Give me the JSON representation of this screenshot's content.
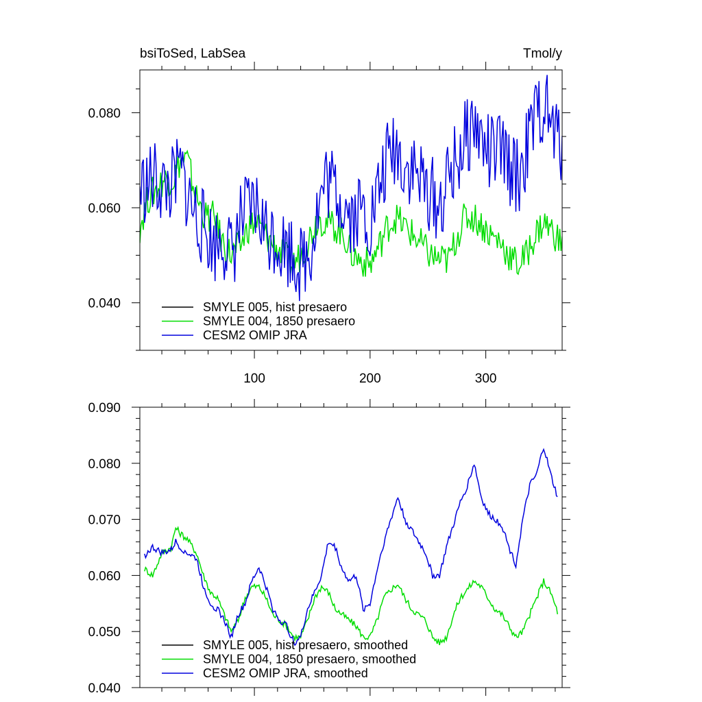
{
  "chart_data": [
    {
      "type": "line",
      "title": "bsiToSed, LabSea",
      "units": "Tmol/y",
      "xlim": [
        1,
        366
      ],
      "ylim": [
        0.03,
        0.089
      ],
      "xticks": [
        100,
        200,
        300
      ],
      "xtick_labels": [
        "100",
        "200",
        "300"
      ],
      "yticks": [
        0.04,
        0.06,
        0.08
      ],
      "ytick_labels": [
        "0.040",
        "0.060",
        "0.080"
      ],
      "legend_position": "bottom-left",
      "series": [
        {
          "name": "SMYLE 005, hist presaero",
          "color": "#000000",
          "x": [],
          "values": []
        },
        {
          "name": "SMYLE 004, 1850 presaero",
          "color": "#00dd00",
          "x": [
            1,
            8,
            15,
            22,
            30,
            36,
            42,
            50,
            58,
            65,
            72,
            80,
            88,
            95,
            102,
            110,
            118,
            125,
            132,
            140,
            148,
            155,
            162,
            170,
            178,
            185,
            192,
            200,
            208,
            215,
            222,
            230,
            238,
            245,
            252,
            260,
            268,
            275,
            282,
            290,
            298,
            305,
            312,
            320,
            328,
            335,
            342,
            350,
            358,
            366
          ],
          "values": [
            0.056,
            0.062,
            0.064,
            0.066,
            0.066,
            0.07,
            0.07,
            0.062,
            0.058,
            0.058,
            0.053,
            0.05,
            0.052,
            0.056,
            0.057,
            0.054,
            0.052,
            0.05,
            0.048,
            0.05,
            0.054,
            0.058,
            0.057,
            0.056,
            0.054,
            0.05,
            0.049,
            0.048,
            0.052,
            0.056,
            0.058,
            0.056,
            0.054,
            0.052,
            0.05,
            0.049,
            0.049,
            0.054,
            0.058,
            0.058,
            0.056,
            0.054,
            0.053,
            0.05,
            0.048,
            0.05,
            0.054,
            0.057,
            0.055,
            0.052
          ]
        },
        {
          "name": "CESM2 OMIP JRA",
          "color": "#0000dd",
          "x": [
            1,
            8,
            15,
            22,
            30,
            36,
            42,
            50,
            58,
            65,
            72,
            80,
            88,
            95,
            102,
            110,
            118,
            125,
            132,
            140,
            148,
            155,
            162,
            170,
            178,
            185,
            192,
            200,
            208,
            215,
            222,
            230,
            238,
            245,
            252,
            260,
            268,
            275,
            282,
            290,
            298,
            305,
            312,
            320,
            328,
            335,
            342,
            350,
            358,
            366
          ],
          "values": [
            0.064,
            0.065,
            0.066,
            0.064,
            0.065,
            0.068,
            0.063,
            0.058,
            0.055,
            0.052,
            0.054,
            0.05,
            0.057,
            0.059,
            0.06,
            0.055,
            0.054,
            0.052,
            0.051,
            0.048,
            0.051,
            0.06,
            0.066,
            0.064,
            0.061,
            0.058,
            0.06,
            0.057,
            0.064,
            0.07,
            0.073,
            0.069,
            0.068,
            0.065,
            0.063,
            0.06,
            0.066,
            0.07,
            0.074,
            0.078,
            0.073,
            0.071,
            0.072,
            0.069,
            0.066,
            0.072,
            0.078,
            0.082,
            0.076,
            0.073
          ]
        }
      ]
    },
    {
      "type": "line",
      "title": "",
      "xlim": [
        1,
        366
      ],
      "ylim": [
        0.04,
        0.09
      ],
      "xticks": [
        100,
        200,
        300
      ],
      "yticks": [
        0.04,
        0.05,
        0.06,
        0.07,
        0.08,
        0.09
      ],
      "ytick_labels": [
        "0.040",
        "0.050",
        "0.060",
        "0.070",
        "0.080",
        "0.090"
      ],
      "legend_position": "bottom-left",
      "series": [
        {
          "name": "SMYLE 005, hist presaero, smoothed",
          "color": "#000000",
          "x": [],
          "values": []
        },
        {
          "name": "SMYLE 004, 1850 presaero, smoothed",
          "color": "#00dd00",
          "x": [
            5,
            12,
            20,
            28,
            32,
            36,
            42,
            50,
            56,
            62,
            68,
            74,
            80,
            86,
            92,
            98,
            104,
            110,
            116,
            122,
            128,
            134,
            140,
            146,
            152,
            158,
            164,
            170,
            176,
            182,
            188,
            194,
            200,
            206,
            212,
            218,
            224,
            230,
            236,
            242,
            248,
            254,
            260,
            266,
            272,
            278,
            284,
            290,
            296,
            302,
            308,
            314,
            320,
            326,
            332,
            338,
            344,
            350,
            356,
            362
          ],
          "values": [
            0.0612,
            0.06,
            0.064,
            0.065,
            0.0685,
            0.0675,
            0.0665,
            0.064,
            0.06,
            0.057,
            0.056,
            0.053,
            0.05,
            0.052,
            0.056,
            0.058,
            0.058,
            0.056,
            0.053,
            0.052,
            0.051,
            0.049,
            0.049,
            0.052,
            0.056,
            0.058,
            0.057,
            0.054,
            0.053,
            0.052,
            0.051,
            0.049,
            0.049,
            0.052,
            0.056,
            0.0575,
            0.0585,
            0.056,
            0.054,
            0.053,
            0.052,
            0.049,
            0.048,
            0.049,
            0.053,
            0.056,
            0.0575,
            0.059,
            0.058,
            0.056,
            0.054,
            0.053,
            0.051,
            0.049,
            0.05,
            0.053,
            0.056,
            0.059,
            0.057,
            0.0535
          ]
        },
        {
          "name": "CESM2 OMIP JRA, smoothed",
          "color": "#0000dd",
          "x": [
            5,
            12,
            20,
            28,
            32,
            36,
            42,
            50,
            56,
            62,
            68,
            74,
            80,
            86,
            92,
            98,
            104,
            110,
            116,
            122,
            128,
            134,
            140,
            146,
            152,
            158,
            164,
            170,
            176,
            182,
            188,
            194,
            200,
            206,
            212,
            218,
            224,
            230,
            236,
            242,
            248,
            254,
            260,
            266,
            272,
            278,
            284,
            290,
            296,
            302,
            308,
            314,
            320,
            326,
            332,
            338,
            344,
            350,
            356,
            362
          ],
          "values": [
            0.0635,
            0.065,
            0.064,
            0.0645,
            0.066,
            0.065,
            0.064,
            0.063,
            0.058,
            0.055,
            0.054,
            0.052,
            0.049,
            0.053,
            0.055,
            0.059,
            0.0615,
            0.058,
            0.054,
            0.052,
            0.051,
            0.048,
            0.049,
            0.054,
            0.057,
            0.06,
            0.066,
            0.065,
            0.061,
            0.059,
            0.06,
            0.054,
            0.055,
            0.061,
            0.066,
            0.07,
            0.074,
            0.07,
            0.068,
            0.066,
            0.064,
            0.06,
            0.06,
            0.065,
            0.069,
            0.073,
            0.076,
            0.08,
            0.074,
            0.071,
            0.07,
            0.069,
            0.065,
            0.062,
            0.07,
            0.076,
            0.078,
            0.083,
            0.078,
            0.074
          ]
        }
      ]
    }
  ]
}
